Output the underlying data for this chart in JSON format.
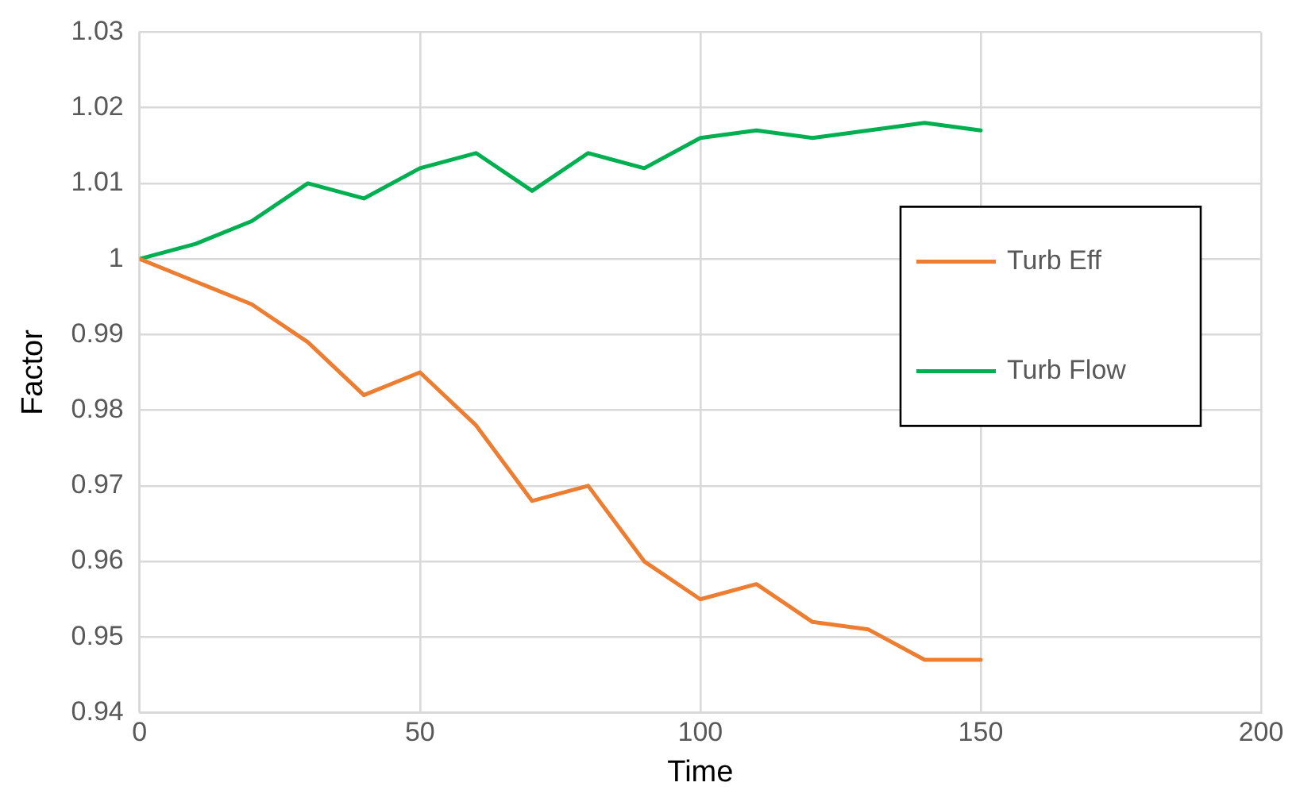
{
  "chart_data": {
    "type": "line",
    "xlabel": "Time",
    "ylabel": "Factor",
    "x": [
      0,
      10,
      20,
      30,
      40,
      50,
      60,
      70,
      80,
      90,
      100,
      110,
      120,
      130,
      140,
      150
    ],
    "series": [
      {
        "name": "Turb Eff",
        "color": "#ed7d31",
        "values": [
          1,
          0.997,
          0.994,
          0.989,
          0.982,
          0.985,
          0.978,
          0.968,
          0.97,
          0.96,
          0.955,
          0.957,
          0.952,
          0.951,
          0.947,
          0.947
        ]
      },
      {
        "name": "Turb Flow",
        "color": "#00b050",
        "values": [
          1,
          1.002,
          1.005,
          1.01,
          1.008,
          1.012,
          1.014,
          1.009,
          1.014,
          1.012,
          1.016,
          1.017,
          1.016,
          1.017,
          1.018,
          1.017
        ]
      }
    ],
    "xlim": [
      0,
      200
    ],
    "xticks": [
      0,
      50,
      100,
      150,
      200
    ],
    "ylim": [
      0.94,
      1.03
    ],
    "yticks": [
      0.94,
      0.95,
      0.96,
      0.97,
      0.98,
      0.99,
      1,
      1.01,
      1.02,
      1.03
    ],
    "grid": true,
    "legend": "right",
    "marker": "none",
    "line_style": "solid"
  }
}
